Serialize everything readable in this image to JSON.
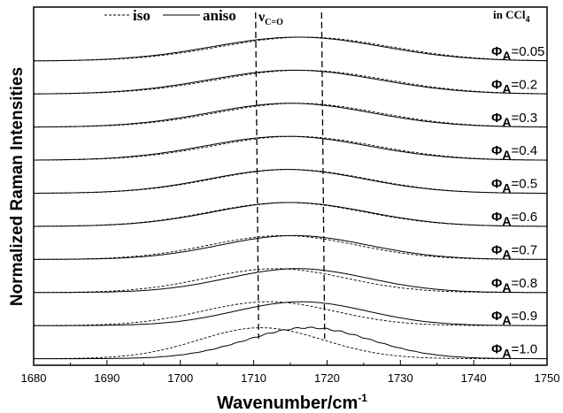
{
  "chart_data": {
    "type": "line",
    "title": "",
    "xlabel": "Wavenumber/cm",
    "xlabel_sup": "-1",
    "ylabel": "Normalized Raman Intensities",
    "xlim": [
      1680,
      1750
    ],
    "x_ticks": [
      1680,
      1690,
      1700,
      1710,
      1720,
      1730,
      1740,
      1750
    ],
    "grid": false,
    "legend": {
      "position": "top-left",
      "entries": [
        {
          "name": "iso",
          "style": "dashed"
        },
        {
          "name": "aniso",
          "style": "solid"
        }
      ]
    },
    "annotations": {
      "solvent": "in CCl",
      "solvent_sub": "4",
      "mode": "ν",
      "mode_sub": "C=O",
      "vlines": [
        1710.5,
        1719.5
      ]
    },
    "phi_symbol": "Φ",
    "phi_sub": "A",
    "series": [
      {
        "label": "=0.05",
        "iso_center": 1717.0,
        "aniso_center": 1716.0,
        "sigma": 11.5
      },
      {
        "label": "=0.2",
        "iso_center": 1716.5,
        "aniso_center": 1715.5,
        "sigma": 11.5
      },
      {
        "label": "=0.3",
        "iso_center": 1716.0,
        "aniso_center": 1715.0,
        "sigma": 11.0
      },
      {
        "label": "=0.4",
        "iso_center": 1715.5,
        "aniso_center": 1714.5,
        "sigma": 11.0
      },
      {
        "label": "=0.5",
        "iso_center": 1715.0,
        "aniso_center": 1714.5,
        "sigma": 10.5
      },
      {
        "label": "=0.6",
        "iso_center": 1714.5,
        "aniso_center": 1715.0,
        "sigma": 10.5
      },
      {
        "label": "=0.7",
        "iso_center": 1714.0,
        "aniso_center": 1715.5,
        "sigma": 10.0
      },
      {
        "label": "=0.8",
        "iso_center": 1713.0,
        "aniso_center": 1716.0,
        "sigma": 9.5
      },
      {
        "label": "=0.9",
        "iso_center": 1712.0,
        "aniso_center": 1716.5,
        "sigma": 9.0
      },
      {
        "label": "=1.0",
        "iso_center": 1711.0,
        "aniso_center": 1717.5,
        "sigma": 8.5
      }
    ]
  }
}
